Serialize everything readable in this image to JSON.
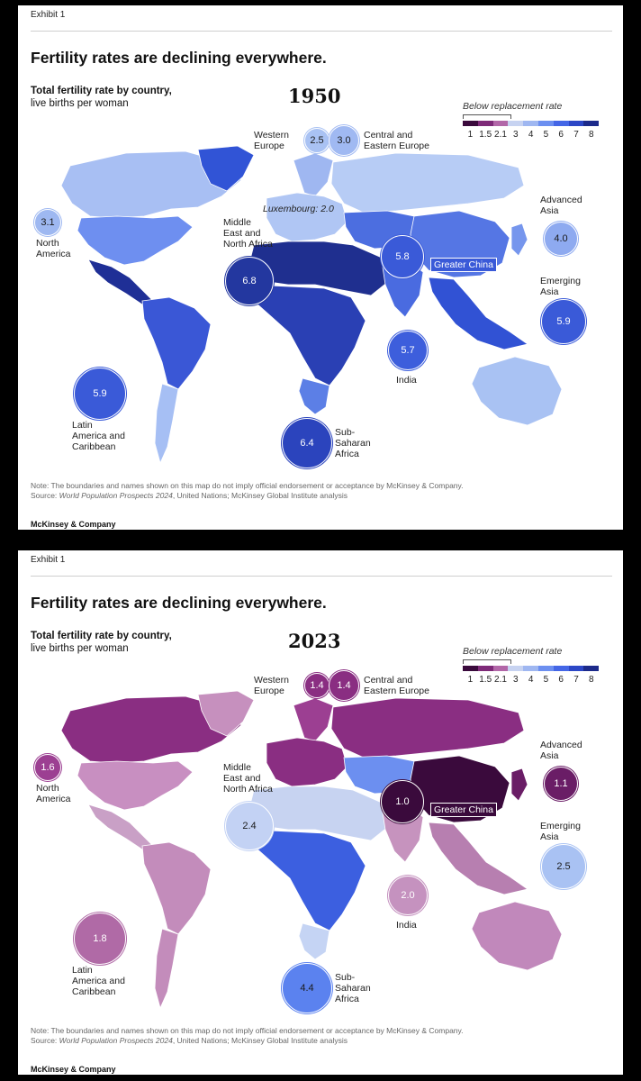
{
  "panels": [
    {
      "exhibit": "Exhibit 1",
      "title": "Fertility rates are declining everywhere.",
      "subtitle_bold": "Total fertility rate by country,",
      "subtitle": "live births per woman",
      "year": "1950",
      "legend": {
        "title": "Below replacement rate",
        "ticks": [
          "1",
          "1.5",
          "2.1",
          "3",
          "4",
          "5",
          "6",
          "7",
          "8"
        ],
        "colors": [
          "#3a0a3c",
          "#7e2a78",
          "#b267a8",
          "#c7d3f1",
          "#9fb7f1",
          "#6c8ff0",
          "#4466e6",
          "#2c47c6",
          "#1c2a8a"
        ]
      },
      "regions": [
        {
          "name": "Western Europe",
          "line1": "Western",
          "line2": "Europe",
          "line3": "",
          "value": "2.5",
          "tfr": 2.5,
          "color": "#a9c2f3"
        },
        {
          "name": "Central and Eastern Europe",
          "line1": "Central and",
          "line2": "Eastern Europe",
          "line3": "",
          "value": "3.0",
          "tfr": 3.0,
          "color": "#a0b9f2"
        },
        {
          "name": "North America",
          "line1": "North",
          "line2": "America",
          "line3": "",
          "value": "3.1",
          "tfr": 3.1,
          "color": "#9eb8f1"
        },
        {
          "name": "Middle East and North Africa",
          "line1": "Middle",
          "line2": "East and",
          "line3": "North Africa",
          "value": "6.8",
          "tfr": 6.8,
          "color": "#23379f"
        },
        {
          "name": "Greater China",
          "line1": "Greater China",
          "line2": "",
          "line3": "",
          "value": "5.8",
          "tfr": 5.8,
          "color": "#3a5ad8"
        },
        {
          "name": "Advanced Asia",
          "line1": "Advanced",
          "line2": "Asia",
          "line3": "",
          "value": "4.0",
          "tfr": 4.0,
          "color": "#8eaaf0"
        },
        {
          "name": "Emerging Asia",
          "line1": "Emerging",
          "line2": "Asia",
          "line3": "",
          "value": "5.9",
          "tfr": 5.9,
          "color": "#3a5ad8"
        },
        {
          "name": "India",
          "line1": "India",
          "line2": "",
          "line3": "",
          "value": "5.7",
          "tfr": 5.7,
          "color": "#3d5edc"
        },
        {
          "name": "Latin America and Caribbean",
          "line1": "Latin",
          "line2": "America and",
          "line3": "Caribbean",
          "value": "5.9",
          "tfr": 5.9,
          "color": "#3a5ad8"
        },
        {
          "name": "Sub-Saharan Africa",
          "line1": "Sub-",
          "line2": "Saharan",
          "line3": "Africa",
          "value": "6.4",
          "tfr": 6.4,
          "color": "#2b44bd"
        }
      ],
      "callout": "Luxembourg: 2.0",
      "map_colors": {
        "north_america": "#6e8ff0",
        "canada": "#a8bff3",
        "greenland": "#3154d6",
        "mexico_central": "#1f2f96",
        "south_america": "#3a57d6",
        "southern_cone": "#a6bff4",
        "europe": "#b0c6f4",
        "scandinavia": "#9fb7f1",
        "russia": "#b7ccf5",
        "mena": "#1f2f8f",
        "africa": "#2a40b4",
        "south_africa": "#5c7fe6",
        "central_asia": "#4c6ee0",
        "china": "#5576e4",
        "india": "#4a6be0",
        "southeast_asia": "#3152d4",
        "japan": "#7696ed",
        "australia": "#a9c2f3"
      },
      "note_prefix": "Note: The boundaries and names shown on this map do not imply official endorsement or acceptance by McKinsey & Company.",
      "source_label": "Source: ",
      "source_italic": "World Population Prospects 2024",
      "source_rest": ", United Nations; McKinsey Global Institute analysis",
      "brand": "McKinsey & Company"
    },
    {
      "exhibit": "Exhibit 1",
      "title": "Fertility rates are declining everywhere.",
      "subtitle_bold": "Total fertility rate by country,",
      "subtitle": "live births per woman",
      "year": "2023",
      "legend": {
        "title": "Below replacement rate",
        "ticks": [
          "1",
          "1.5",
          "2.1",
          "3",
          "4",
          "5",
          "6",
          "7",
          "8"
        ],
        "colors": [
          "#3a0a3c",
          "#7e2a78",
          "#b267a8",
          "#c7d3f1",
          "#9fb7f1",
          "#6c8ff0",
          "#4466e6",
          "#2c47c6",
          "#1c2a8a"
        ]
      },
      "regions": [
        {
          "name": "Western Europe",
          "line1": "Western",
          "line2": "Europe",
          "line3": "",
          "value": "1.4",
          "tfr": 1.4,
          "color": "#8a2e82"
        },
        {
          "name": "Central and Eastern Europe",
          "line1": "Central and",
          "line2": "Eastern Europe",
          "line3": "",
          "value": "1.4",
          "tfr": 1.4,
          "color": "#8a2e82"
        },
        {
          "name": "North America",
          "line1": "North",
          "line2": "America",
          "line3": "",
          "value": "1.6",
          "tfr": 1.6,
          "color": "#9c3f92"
        },
        {
          "name": "Middle East and North Africa",
          "line1": "Middle",
          "line2": "East and",
          "line3": "North Africa",
          "value": "2.4",
          "tfr": 2.4,
          "color": "#c3d2f4"
        },
        {
          "name": "Greater China",
          "line1": "Greater China",
          "line2": "",
          "line3": "",
          "value": "1.0",
          "tfr": 1.0,
          "color": "#3a0a3c"
        },
        {
          "name": "Advanced Asia",
          "line1": "Advanced",
          "line2": "Asia",
          "line3": "",
          "value": "1.1",
          "tfr": 1.1,
          "color": "#6a1d66"
        },
        {
          "name": "Emerging Asia",
          "line1": "Emerging",
          "line2": "Asia",
          "line3": "",
          "value": "2.5",
          "tfr": 2.5,
          "color": "#a9c2f3"
        },
        {
          "name": "India",
          "line1": "India",
          "line2": "",
          "line3": "",
          "value": "2.0",
          "tfr": 2.0,
          "color": "#c592bf"
        },
        {
          "name": "Latin America and Caribbean",
          "line1": "Latin",
          "line2": "America and",
          "line3": "Caribbean",
          "value": "1.8",
          "tfr": 1.8,
          "color": "#b06aa6"
        },
        {
          "name": "Sub-Saharan Africa",
          "line1": "Sub-",
          "line2": "Saharan",
          "line3": "Africa",
          "value": "4.4",
          "tfr": 4.4,
          "color": "#5b82ef"
        }
      ],
      "callout": "",
      "map_colors": {
        "north_america": "#c88fc1",
        "canada": "#8a2e82",
        "greenland": "#c690be",
        "mexico_central": "#c9a0c6",
        "south_america": "#c38cbb",
        "southern_cone": "#c38cbb",
        "europe": "#8a2e82",
        "scandinavia": "#9c3f92",
        "russia": "#8a2e82",
        "mena": "#c7d3f1",
        "africa": "#3c5fe0",
        "south_africa": "#c5d4f4",
        "central_asia": "#6c8ff0",
        "china": "#3a0a3c",
        "india": "#c693be",
        "southeast_asia": "#b77fb0",
        "japan": "#6a1d66",
        "australia": "#c188bb"
      },
      "note_prefix": "Note: The boundaries and names shown on this map do not imply official endorsement or acceptance by McKinsey & Company.",
      "source_label": "Source: ",
      "source_italic": "World Population Prospects 2024",
      "source_rest": ", United Nations; McKinsey Global Institute analysis",
      "brand": "McKinsey & Company"
    }
  ]
}
